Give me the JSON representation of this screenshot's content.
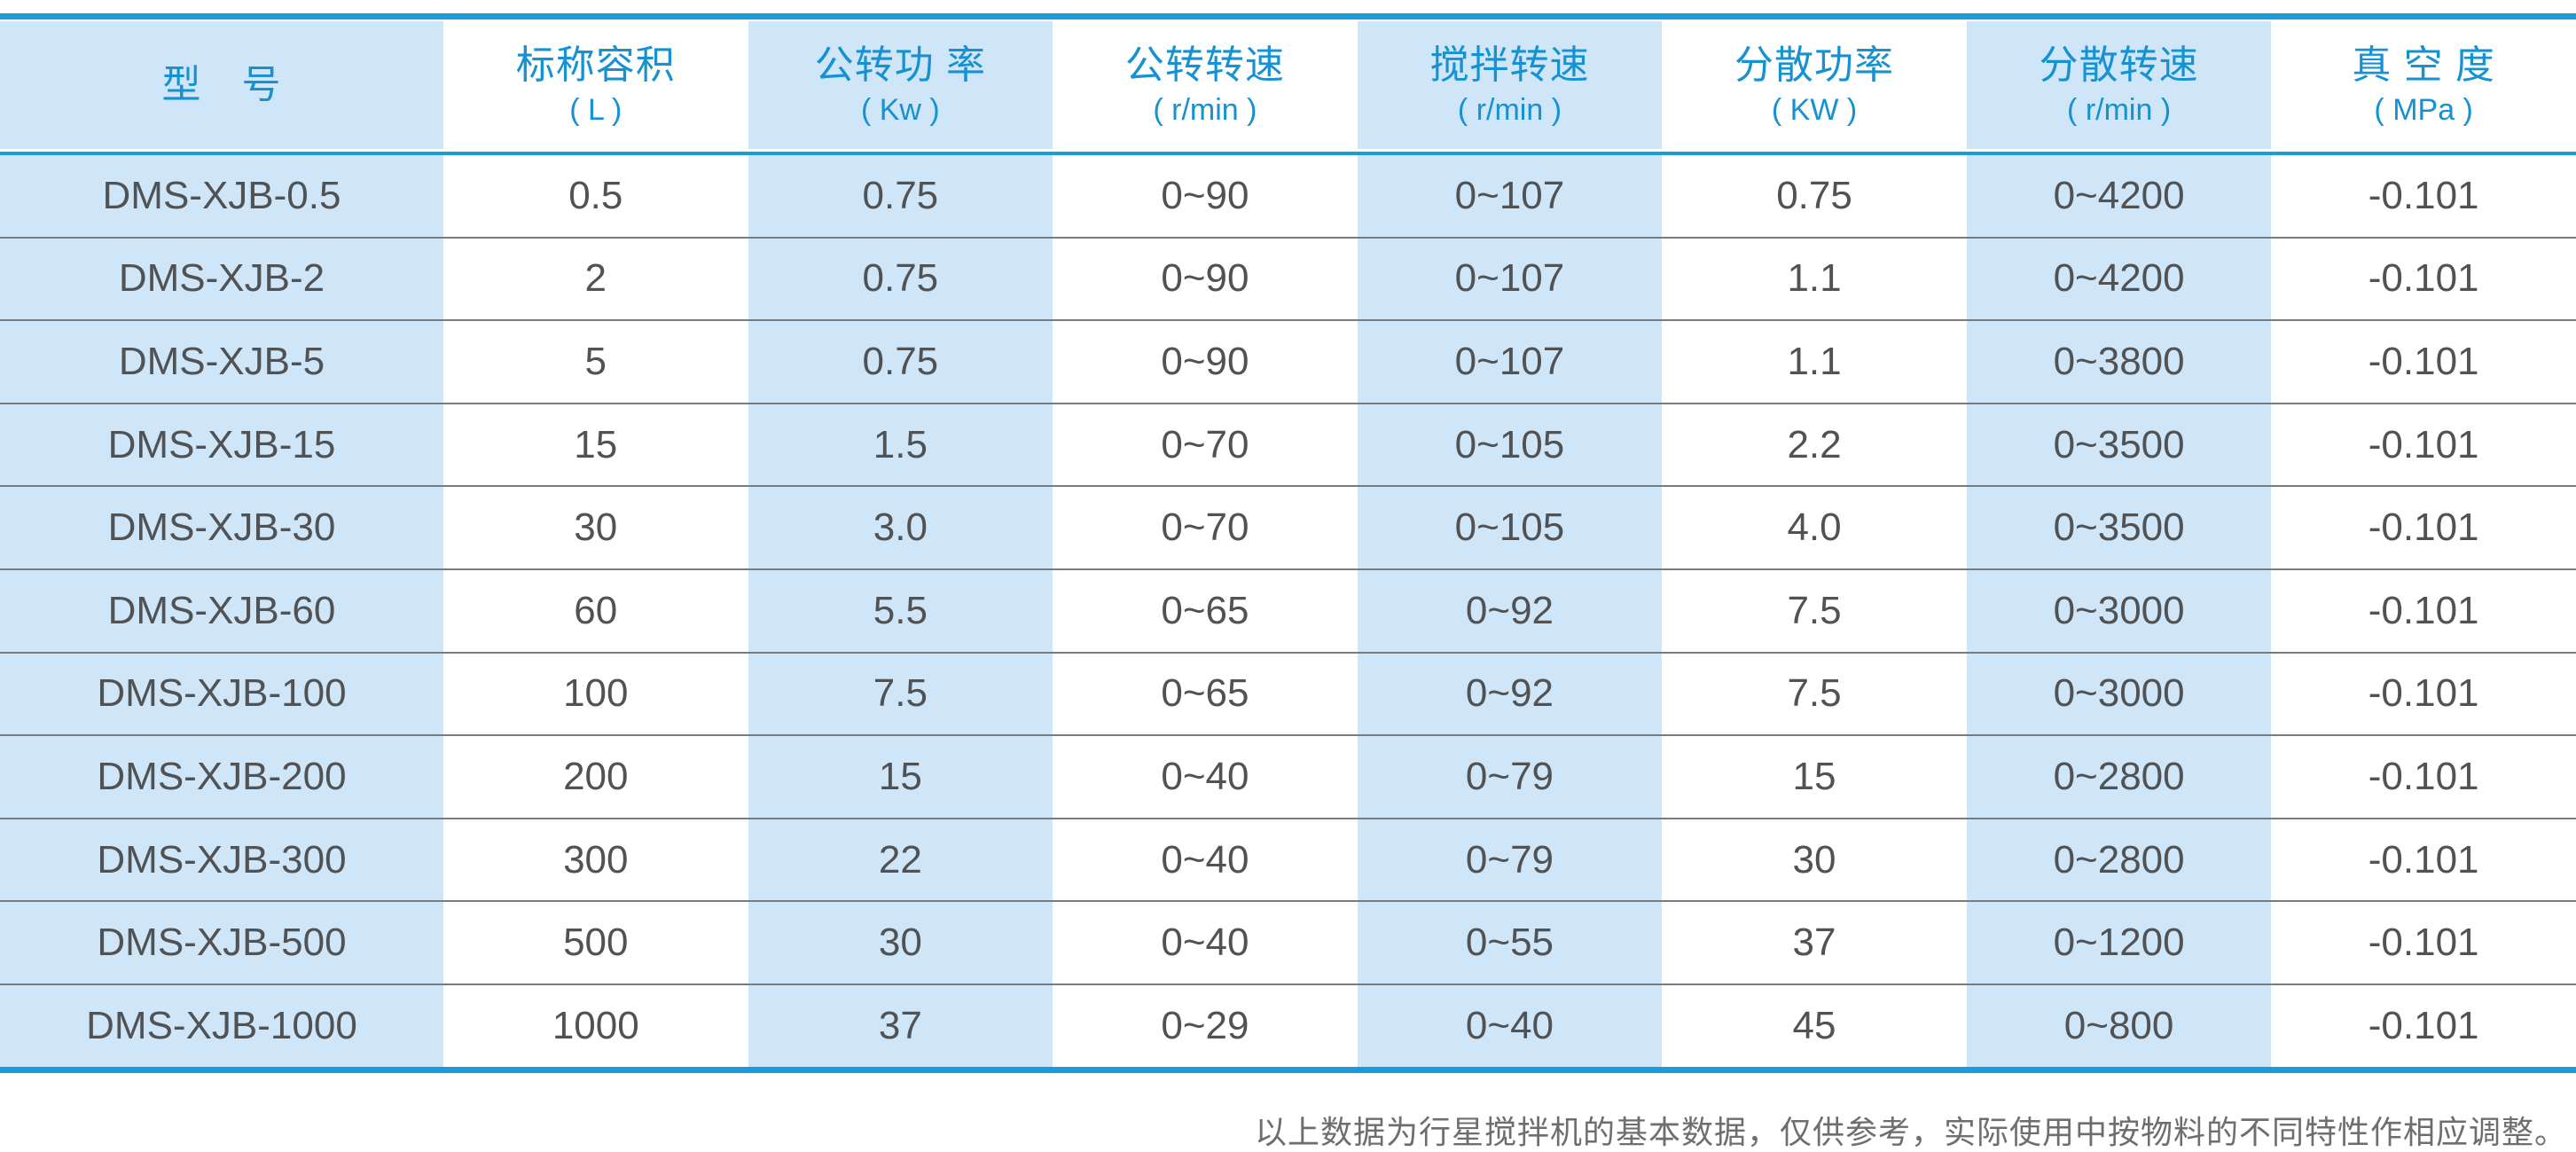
{
  "table": {
    "columns": [
      {
        "title": "型　号",
        "unit": ""
      },
      {
        "title": "标称容积",
        "unit": "( L )"
      },
      {
        "title": "公转功 率",
        "unit": "( Kw )"
      },
      {
        "title": "公转转速",
        "unit": "( r/min )"
      },
      {
        "title": "搅拌转速",
        "unit": "( r/min )"
      },
      {
        "title": "分散功率",
        "unit": "( KW )"
      },
      {
        "title": "分散转速",
        "unit": "( r/min )"
      },
      {
        "title": "真 空 度",
        "unit": "( MPa )"
      }
    ],
    "rows": [
      [
        "DMS-XJB-0.5",
        "0.5",
        "0.75",
        "0~90",
        "0~107",
        "0.75",
        "0~4200",
        "-0.101"
      ],
      [
        "DMS-XJB-2",
        "2",
        "0.75",
        "0~90",
        "0~107",
        "1.1",
        "0~4200",
        "-0.101"
      ],
      [
        "DMS-XJB-5",
        "5",
        "0.75",
        "0~90",
        "0~107",
        "1.1",
        "0~3800",
        "-0.101"
      ],
      [
        "DMS-XJB-15",
        "15",
        "1.5",
        "0~70",
        "0~105",
        "2.2",
        "0~3500",
        "-0.101"
      ],
      [
        "DMS-XJB-30",
        "30",
        "3.0",
        "0~70",
        "0~105",
        "4.0",
        "0~3500",
        "-0.101"
      ],
      [
        "DMS-XJB-60",
        "60",
        "5.5",
        "0~65",
        "0~92",
        "7.5",
        "0~3000",
        "-0.101"
      ],
      [
        "DMS-XJB-100",
        "100",
        "7.5",
        "0~65",
        "0~92",
        "7.5",
        "0~3000",
        "-0.101"
      ],
      [
        "DMS-XJB-200",
        "200",
        "15",
        "0~40",
        "0~79",
        "15",
        "0~2800",
        "-0.101"
      ],
      [
        "DMS-XJB-300",
        "300",
        "22",
        "0~40",
        "0~79",
        "30",
        "0~2800",
        "-0.101"
      ],
      [
        "DMS-XJB-500",
        "500",
        "30",
        "0~40",
        "0~55",
        "37",
        "0~1200",
        "-0.101"
      ],
      [
        "DMS-XJB-1000",
        "1000",
        "37",
        "0~29",
        "0~40",
        "45",
        "0~800",
        "-0.101"
      ]
    ]
  },
  "footer": {
    "note": "以上数据为行星搅拌机的基本数据，仅供参考，实际使用中按物料的不同特性作相应调整。"
  },
  "colors": {
    "accent_blue": "#1b9bd8",
    "header_text_blue": "#1691d2",
    "light_blue_column_bg": "#cee6f7",
    "body_text_gray": "#515254",
    "row_separator_gray": "#7b7b7b",
    "footer_text_gray": "#6e6e6e"
  }
}
